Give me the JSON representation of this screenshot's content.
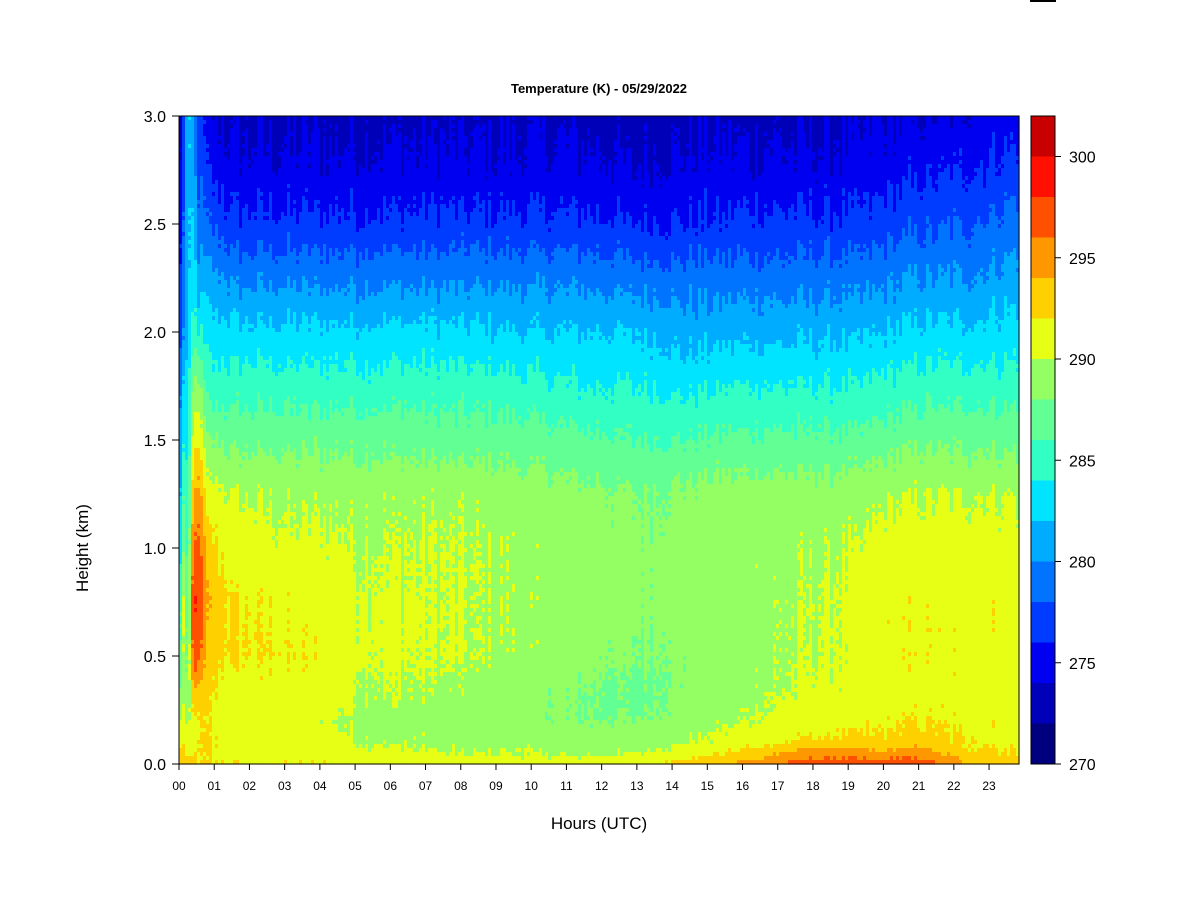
{
  "chart_data": {
    "type": "heatmap",
    "title": "Temperature (K) - 05/29/2022",
    "xlabel": "Hours (UTC)",
    "ylabel": "Height (km)",
    "xlim": [
      0,
      23.85
    ],
    "ylim": [
      0.0,
      3.0
    ],
    "x_ticks": [
      {
        "value": 0,
        "label": "00"
      },
      {
        "value": 1,
        "label": "01"
      },
      {
        "value": 2,
        "label": "02"
      },
      {
        "value": 3,
        "label": "03"
      },
      {
        "value": 4,
        "label": "04"
      },
      {
        "value": 5,
        "label": "05"
      },
      {
        "value": 6,
        "label": "06"
      },
      {
        "value": 7,
        "label": "07"
      },
      {
        "value": 8,
        "label": "08"
      },
      {
        "value": 9,
        "label": "09"
      },
      {
        "value": 10,
        "label": "10"
      },
      {
        "value": 11,
        "label": "11"
      },
      {
        "value": 12,
        "label": "12"
      },
      {
        "value": 13,
        "label": "13"
      },
      {
        "value": 14,
        "label": "14"
      },
      {
        "value": 15,
        "label": "15"
      },
      {
        "value": 16,
        "label": "16"
      },
      {
        "value": 17,
        "label": "17"
      },
      {
        "value": 18,
        "label": "18"
      },
      {
        "value": 19,
        "label": "19"
      },
      {
        "value": 20,
        "label": "20"
      },
      {
        "value": 21,
        "label": "21"
      },
      {
        "value": 22,
        "label": "22"
      },
      {
        "value": 23,
        "label": "23"
      }
    ],
    "y_ticks": [
      {
        "value": 0.0,
        "label": "0.0"
      },
      {
        "value": 0.5,
        "label": "0.5"
      },
      {
        "value": 1.0,
        "label": "1.0"
      },
      {
        "value": 1.5,
        "label": "1.5"
      },
      {
        "value": 2.0,
        "label": "2.0"
      },
      {
        "value": 2.5,
        "label": "2.5"
      },
      {
        "value": 3.0,
        "label": "3.0"
      }
    ],
    "colorbar": {
      "min": 270,
      "max": 302,
      "step": 2,
      "ticks": [
        {
          "value": 270,
          "label": "270"
        },
        {
          "value": 275,
          "label": "275"
        },
        {
          "value": 280,
          "label": "280"
        },
        {
          "value": 285,
          "label": "285"
        },
        {
          "value": 290,
          "label": "290"
        },
        {
          "value": 295,
          "label": "295"
        },
        {
          "value": 300,
          "label": "300"
        }
      ],
      "colors": [
        "#00007f",
        "#0000b8",
        "#0000f0",
        "#003cff",
        "#0074ff",
        "#00acff",
        "#00e4ff",
        "#32ffc4",
        "#62ff94",
        "#94ff62",
        "#e6ff14",
        "#ffd000",
        "#ff9800",
        "#ff5000",
        "#ff1000",
        "#c80000"
      ],
      "top_color": "#800000"
    },
    "grid": false,
    "legend": "colorbar-right",
    "profile_heights_km": [
      0.0,
      0.05,
      0.1,
      0.2,
      0.3,
      0.5,
      0.75,
      1.0,
      1.25,
      1.5,
      1.75,
      2.0,
      2.25,
      2.5,
      2.75,
      3.0
    ],
    "profiles": [
      {
        "hour": 0.0,
        "temps": [
          293,
          292,
          291,
          289.5,
          288,
          284,
          283,
          281,
          280,
          279,
          278,
          276,
          275,
          273.5,
          272,
          271
        ]
      },
      {
        "hour": 0.15,
        "temps": [
          294,
          293,
          292,
          291,
          290,
          291,
          292,
          289,
          287,
          285,
          283,
          281,
          280,
          279,
          279,
          279
        ]
      },
      {
        "hour": 0.25,
        "temps": [
          293,
          291,
          290,
          289,
          288,
          286,
          285,
          284,
          283,
          282,
          282,
          281,
          281,
          281,
          281,
          281
        ]
      },
      {
        "hour": 0.4,
        "temps": [
          293,
          292,
          291,
          291,
          293,
          297,
          298,
          296,
          294,
          291,
          288,
          285,
          283,
          282,
          281,
          281
        ]
      },
      {
        "hour": 0.55,
        "temps": [
          292,
          292,
          292,
          292,
          293,
          297,
          298,
          297,
          295,
          292,
          289,
          284,
          281,
          279,
          278,
          277
        ]
      },
      {
        "hour": 0.8,
        "temps": [
          292,
          292,
          292,
          292,
          292,
          293,
          294,
          293,
          291,
          288,
          285,
          283,
          281,
          278,
          276,
          274.5
        ]
      },
      {
        "hour": 1.5,
        "temps": [
          292,
          291,
          291,
          290.5,
          291,
          292,
          292,
          291,
          290,
          287.5,
          285,
          282.5,
          279.5,
          276.5,
          274.5,
          273.5
        ]
      },
      {
        "hour": 3.0,
        "temps": [
          292,
          291,
          290.5,
          290.5,
          291,
          292,
          291.5,
          290.5,
          289.5,
          287.5,
          285,
          282.5,
          279.5,
          276.5,
          274.5,
          273.5
        ]
      },
      {
        "hour": 4.5,
        "temps": [
          292,
          291,
          290.5,
          290,
          291,
          291.5,
          291,
          290.5,
          289.5,
          287.5,
          285,
          282.5,
          279.5,
          276.5,
          274.5,
          273.5
        ]
      },
      {
        "hour": 5.0,
        "temps": [
          292,
          290.5,
          290,
          289.5,
          290,
          290.5,
          290.5,
          290,
          289.5,
          287.5,
          285,
          282.5,
          279.5,
          276.5,
          274.5,
          273.5
        ]
      },
      {
        "hour": 8.0,
        "temps": [
          291,
          290,
          289.5,
          289,
          289.5,
          290,
          290,
          290,
          289.5,
          287,
          285,
          282.5,
          279.5,
          276.5,
          274.5,
          273.5
        ]
      },
      {
        "hour": 10.0,
        "temps": [
          291,
          290,
          289.5,
          288.5,
          288.5,
          289.5,
          289.5,
          289.5,
          289,
          287,
          284.5,
          282,
          279.5,
          276.5,
          274.5,
          273.5
        ]
      },
      {
        "hour": 11.5,
        "temps": [
          291,
          289.5,
          289,
          288,
          288,
          288.5,
          289,
          289,
          288.5,
          286.5,
          284,
          282,
          279.5,
          276.5,
          274.5,
          273.5
        ]
      },
      {
        "hour": 13.0,
        "temps": [
          291.5,
          290,
          289,
          288,
          287.5,
          288,
          288.5,
          288.5,
          288,
          286,
          284,
          282,
          279,
          276,
          274,
          273
        ]
      },
      {
        "hour": 14.5,
        "temps": [
          293,
          291,
          290,
          289,
          288.5,
          288.5,
          289,
          289,
          288.5,
          286,
          283.5,
          281,
          279,
          276,
          274.5,
          273.5
        ]
      },
      {
        "hour": 16.0,
        "temps": [
          294.5,
          292.5,
          291,
          290,
          289.5,
          289.5,
          289.5,
          289.5,
          289,
          286.5,
          284,
          281.5,
          279,
          276.5,
          274.5,
          273.5
        ]
      },
      {
        "hour": 18.0,
        "temps": [
          297.5,
          295,
          292.5,
          291,
          290.5,
          290,
          290,
          289.5,
          289,
          286.5,
          284,
          281.5,
          279,
          276.5,
          274.5,
          273.5
        ]
      },
      {
        "hour": 19.3,
        "temps": [
          297,
          295,
          292.5,
          291.5,
          290.5,
          290.5,
          290.5,
          290,
          289,
          286.5,
          284,
          281.5,
          279,
          276.5,
          274.5,
          273.5
        ]
      },
      {
        "hour": 20.0,
        "temps": [
          297,
          294.5,
          292.5,
          291.5,
          291,
          291.5,
          291.5,
          291,
          289.5,
          287,
          284.5,
          282,
          279.5,
          277,
          275,
          274
        ]
      },
      {
        "hour": 21.0,
        "temps": [
          297.5,
          295,
          293,
          292,
          291.5,
          291.5,
          291.5,
          291,
          290,
          287.5,
          285,
          282.5,
          280,
          277.5,
          275.5,
          274
        ]
      },
      {
        "hour": 22.5,
        "temps": [
          293.5,
          292.5,
          292,
          291.5,
          291.5,
          291.5,
          291.5,
          291,
          290,
          287.5,
          285,
          282.5,
          280,
          278,
          276,
          274.5
        ]
      },
      {
        "hour": 23.85,
        "temps": [
          293,
          292,
          291.5,
          291.5,
          291.5,
          291.5,
          291.5,
          291,
          290,
          287.5,
          285,
          283,
          281,
          279,
          277,
          275
        ]
      }
    ]
  }
}
